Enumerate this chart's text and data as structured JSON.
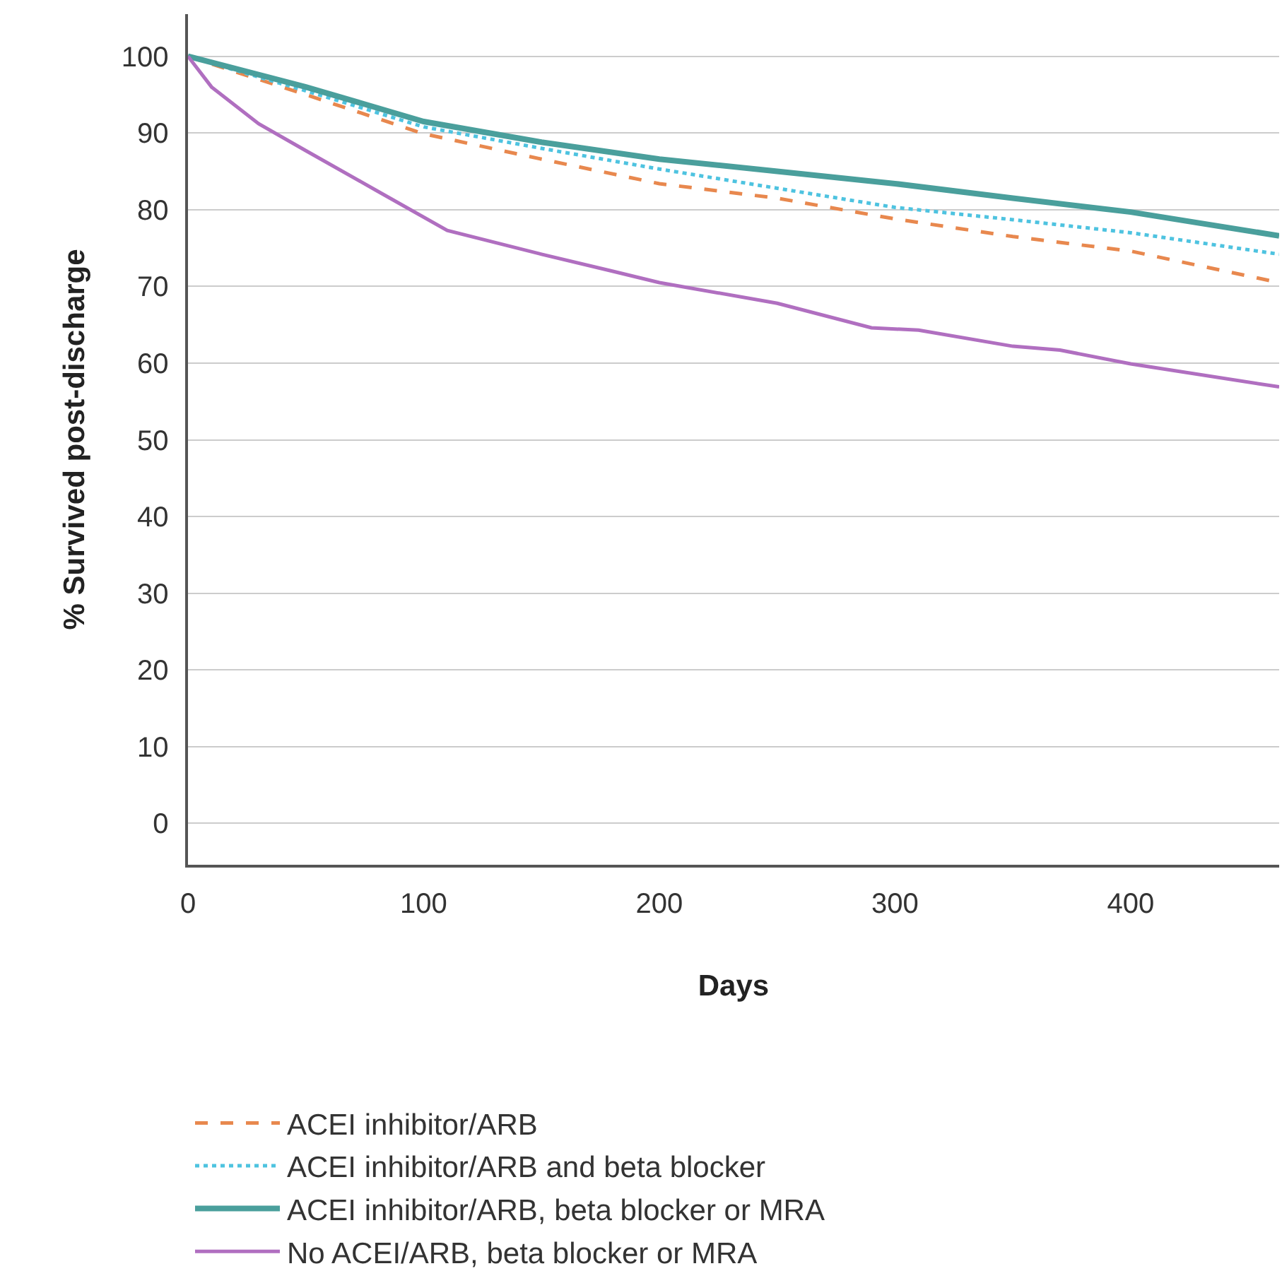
{
  "chart_data": {
    "type": "line",
    "xlabel": "Days",
    "ylabel": "% Survived post-discharge",
    "xlim": [
      0,
      463
    ],
    "xticks": [
      0,
      100,
      200,
      300,
      400
    ],
    "ylim": [
      -5.4,
      105.5
    ],
    "yticks": [
      0,
      10,
      20,
      30,
      40,
      50,
      60,
      70,
      80,
      90,
      100
    ],
    "grid": "y",
    "legend": "bottom",
    "marker": "none",
    "series": [
      {
        "name": "ACEI inhibitor/ARB",
        "color": "#e8884e",
        "line_style": "dashed",
        "x": [
          0,
          50,
          100,
          150,
          200,
          250,
          300,
          350,
          400,
          463
        ],
        "values": [
          100,
          95,
          89.9,
          86.6,
          83.4,
          81.5,
          78.8,
          76.5,
          74.6,
          70.5
        ]
      },
      {
        "name": "ACEI inhibitor/ARB and beta blocker",
        "color": "#4ec3e0",
        "line_style": "dotted",
        "x": [
          0,
          50,
          100,
          150,
          200,
          250,
          300,
          350,
          400,
          463
        ],
        "values": [
          100,
          95.5,
          90.8,
          88,
          85.3,
          82.8,
          80.3,
          78.7,
          77,
          74.2
        ]
      },
      {
        "name": "ACEI inhibitor/ARB, beta blocker or MRA",
        "color": "#4a9f9c",
        "line_style": "solid",
        "x": [
          0,
          50,
          100,
          150,
          200,
          250,
          300,
          350,
          400,
          463
        ],
        "values": [
          100,
          96,
          91.5,
          88.8,
          86.6,
          85,
          83.4,
          81.5,
          79.7,
          76.6
        ]
      },
      {
        "name": "No ACEI/ARB, beta blocker or MRA",
        "color": "#b06fc0",
        "line_style": "solid",
        "x": [
          0,
          10,
          30,
          50,
          80,
          110,
          150,
          180,
          200,
          250,
          290,
          310,
          350,
          370,
          400,
          463
        ],
        "values": [
          100,
          96,
          91.2,
          87.7,
          82.5,
          77.3,
          74.2,
          72,
          70.5,
          67.8,
          64.6,
          64.3,
          62.2,
          61.7,
          59.9,
          56.9
        ]
      }
    ]
  }
}
